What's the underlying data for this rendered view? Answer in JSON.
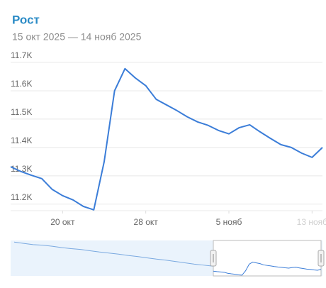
{
  "chart_data": {
    "type": "line",
    "title": "Рост",
    "subtitle": "15 окт 2025 — 14 нояб 2025",
    "x": [
      "2025-10-15",
      "2025-10-16",
      "2025-10-17",
      "2025-10-18",
      "2025-10-19",
      "2025-10-20",
      "2025-10-21",
      "2025-10-22",
      "2025-10-23",
      "2025-10-24",
      "2025-10-25",
      "2025-10-26",
      "2025-10-27",
      "2025-10-28",
      "2025-10-29",
      "2025-10-30",
      "2025-10-31",
      "2025-11-01",
      "2025-11-02",
      "2025-11-03",
      "2025-11-04",
      "2025-11-05",
      "2025-11-06",
      "2025-11-07",
      "2025-11-08",
      "2025-11-09",
      "2025-11-10",
      "2025-11-11",
      "2025-11-12",
      "2025-11-13",
      "2025-11-14"
    ],
    "series": [
      {
        "color": "#3b7dd8",
        "values": [
          11332,
          11315,
          11302,
          11290,
          11252,
          11230,
          11215,
          11192,
          11180,
          11350,
          11600,
          11678,
          11645,
          11618,
          11570,
          11550,
          11530,
          11508,
          11490,
          11478,
          11460,
          11448,
          11470,
          11480,
          11455,
          11432,
          11410,
          11400,
          11380,
          11365,
          11400
        ]
      }
    ],
    "xlim": [
      "2025-10-15",
      "2025-11-14"
    ],
    "xticks": [
      {
        "value": "2025-10-20",
        "label": "20 окт"
      },
      {
        "value": "2025-10-28",
        "label": "28 окт"
      },
      {
        "value": "2025-11-05",
        "label": "5 нояб"
      },
      {
        "value": "2025-11-13",
        "label": "13 нояб"
      }
    ],
    "ylim": [
      11177,
      11720
    ],
    "yticks": [
      {
        "value": 11200,
        "label": "11.2K"
      },
      {
        "value": 11300,
        "label": "11.3K"
      },
      {
        "value": 11400,
        "label": "11.4K"
      },
      {
        "value": 11500,
        "label": "11.5K"
      },
      {
        "value": 11600,
        "label": "11.6K"
      },
      {
        "value": 11700,
        "label": "11.7K"
      }
    ],
    "grid": true,
    "navigator": {
      "values": [
        12440,
        12390,
        12340,
        12320,
        12280,
        12230,
        12190,
        12160,
        12110,
        12060,
        12020,
        11980,
        11930,
        11890,
        11840,
        11790,
        11750,
        11700,
        11650,
        11600,
        11560,
        11520
      ],
      "ylim": [
        11150,
        12500
      ]
    }
  }
}
